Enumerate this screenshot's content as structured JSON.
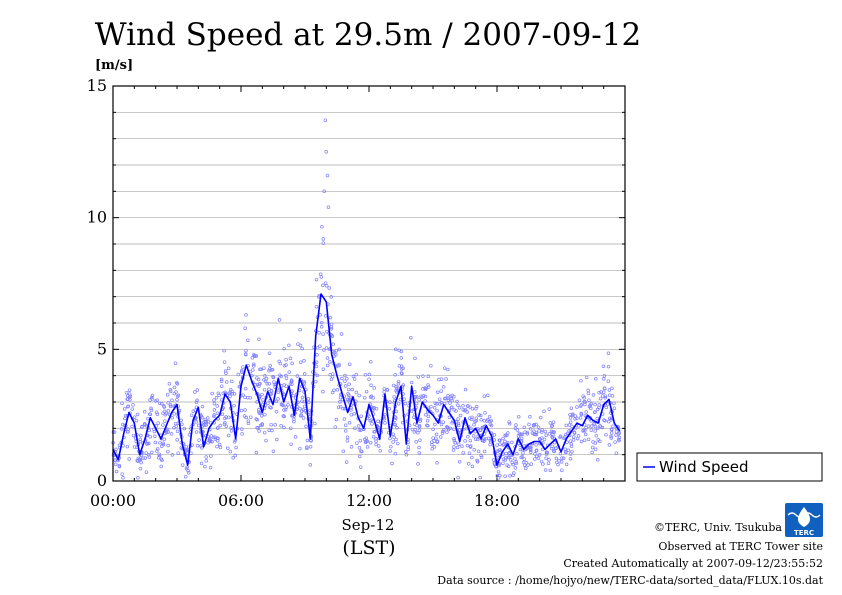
{
  "chart_data": {
    "type": "line",
    "title": "Wind Speed at 29.5m / 2007-09-12",
    "ylabel": "[m/s]",
    "xlabel": "Sep-12",
    "xlabel_sub": "(LST)",
    "ylim": [
      0,
      15
    ],
    "xlim_hours": [
      0,
      24
    ],
    "yticks": [
      "0",
      "5",
      "10",
      "15"
    ],
    "xticks": [
      {
        "hour": 0,
        "label": "00:00"
      },
      {
        "hour": 6,
        "label": "06:00"
      },
      {
        "hour": 12,
        "label": "12:00"
      },
      {
        "hour": 18,
        "label": "18:00"
      }
    ],
    "grid": true,
    "legend": {
      "position": "right",
      "label": "Wind Speed"
    },
    "series_color": "#0000ff",
    "scatter_color": "#8080ff",
    "series": [
      {
        "name": "Wind Speed",
        "x_hours": [
          0,
          0.25,
          0.5,
          0.75,
          1,
          1.25,
          1.5,
          1.75,
          2,
          2.25,
          2.5,
          2.75,
          3,
          3.25,
          3.5,
          3.75,
          4,
          4.25,
          4.5,
          4.75,
          5,
          5.25,
          5.5,
          5.75,
          6,
          6.25,
          6.5,
          6.75,
          7,
          7.25,
          7.5,
          7.75,
          8,
          8.25,
          8.5,
          8.75,
          9,
          9.25,
          9.5,
          9.75,
          10,
          10.25,
          10.5,
          10.75,
          11,
          11.25,
          11.5,
          11.75,
          12,
          12.25,
          12.5,
          12.75,
          13,
          13.25,
          13.5,
          13.75,
          14,
          14.25,
          14.5,
          14.75,
          15,
          15.25,
          15.5,
          15.75,
          16,
          16.25,
          16.5,
          16.75,
          17,
          17.25,
          17.5,
          17.75,
          18,
          18.25,
          18.5,
          18.75,
          19,
          19.25,
          19.5,
          19.75,
          20,
          20.25,
          20.5,
          20.75,
          21,
          21.25,
          21.5,
          21.75,
          22,
          22.25,
          22.5,
          22.75,
          23,
          23.25,
          23.5,
          23.75
        ],
        "values": [
          1.2,
          0.8,
          1.8,
          2.6,
          2.2,
          1.0,
          1.6,
          2.4,
          2.0,
          1.6,
          2.1,
          2.6,
          2.9,
          1.4,
          0.6,
          2.3,
          2.8,
          1.3,
          2.0,
          2.3,
          2.5,
          3.3,
          3.0,
          1.6,
          3.6,
          4.4,
          3.8,
          3.3,
          2.6,
          3.4,
          2.9,
          3.9,
          3.0,
          3.6,
          2.5,
          3.9,
          3.4,
          1.6,
          5.5,
          7.1,
          6.8,
          4.8,
          4.0,
          3.3,
          2.6,
          3.2,
          2.4,
          2.0,
          2.9,
          2.3,
          1.6,
          3.3,
          1.7,
          3.0,
          3.6,
          1.4,
          3.6,
          2.2,
          3.0,
          2.7,
          2.5,
          2.2,
          2.9,
          2.6,
          2.3,
          1.5,
          2.4,
          1.8,
          2.0,
          1.6,
          2.1,
          1.7,
          0.6,
          1.1,
          1.4,
          1.0,
          1.6,
          1.2,
          1.4,
          1.5,
          1.5,
          1.2,
          1.4,
          1.6,
          1.1,
          1.6,
          1.9,
          2.2,
          2.1,
          2.5,
          2.3,
          2.2,
          2.9,
          3.1,
          2.2,
          1.9
        ]
      }
    ]
  },
  "credits": {
    "copyright": "©TERC, Univ. Tsukuba",
    "site": "Observed at TERC Tower site",
    "created": "Created Automatically at 2007-09-12/23:55:52",
    "source": "Data source : /home/hojyo/new/TERC-data/sorted_data/FLUX.10s.dat"
  },
  "logo": {
    "text": "TERC",
    "color": "#1060c0"
  }
}
